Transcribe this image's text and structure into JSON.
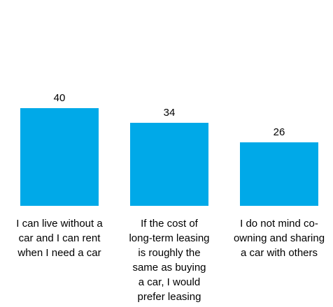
{
  "chart_data": {
    "type": "bar",
    "categories": [
      [
        "I can live without a",
        "car and I can rent",
        "when I need a car"
      ],
      [
        "If the cost of",
        "long-term leasing",
        "is roughly the",
        "same as buying",
        "a car, I would",
        "prefer leasing"
      ],
      [
        "I do not mind co-",
        "owning and sharing",
        "a car with others"
      ]
    ],
    "values": [
      40,
      34,
      26
    ],
    "value_labels": [
      "40",
      "34",
      "26"
    ],
    "bar_color": "#00a9e8",
    "ylim": [
      0,
      40
    ],
    "grid": false,
    "legend": "none"
  }
}
